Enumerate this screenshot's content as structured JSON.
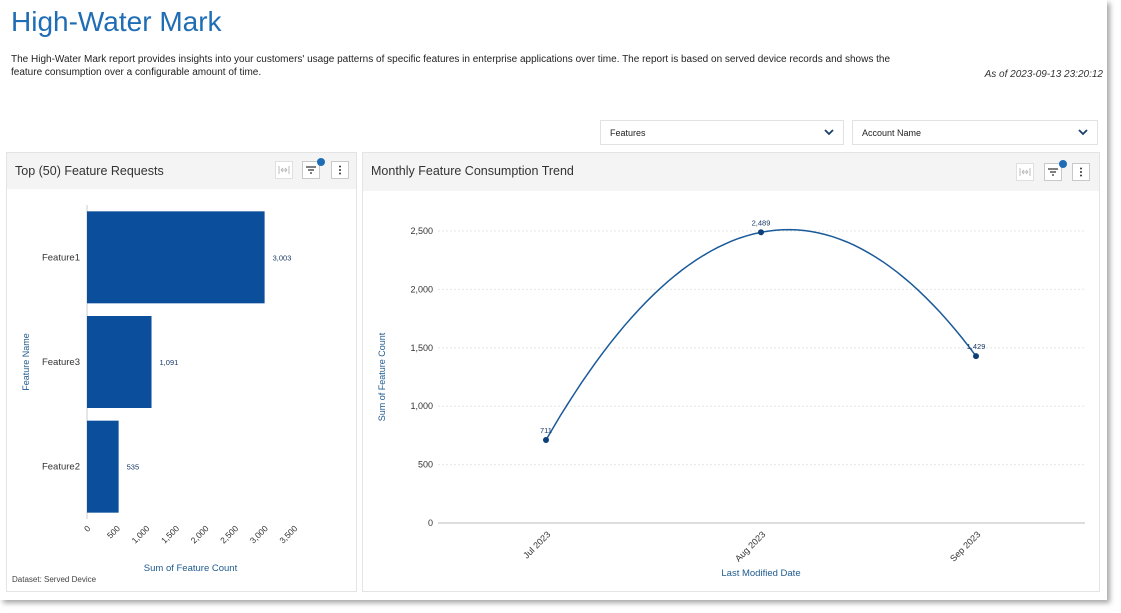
{
  "page": {
    "title": "High-Water Mark",
    "description": "The High-Water Mark report provides insights into your customers' usage patterns of specific features in enterprise applications over time. The report is based on served device records and shows the feature consumption over a configurable amount of time.",
    "as_of": "As of 2023-09-13 23:20:12"
  },
  "filters": {
    "features_label": "Features",
    "account_label": "Account Name"
  },
  "colors": {
    "accent": "#1f6db5",
    "bar": "#0b4f9c",
    "line": "#1a5a9a"
  },
  "icons": {
    "fit": "fit-width-icon",
    "filter": "filter-icon",
    "more": "more-vertical-icon",
    "chevron": "chevron-down-icon"
  },
  "left_panel": {
    "title": "Top (50) Feature Requests",
    "dataset": "Dataset: Served Device"
  },
  "right_panel": {
    "title": "Monthly Feature Consumption Trend"
  },
  "chart_data": [
    {
      "type": "bar",
      "orientation": "horizontal",
      "categories": [
        "Feature1",
        "Feature3",
        "Feature2"
      ],
      "values": [
        3003,
        1091,
        535
      ],
      "labels": [
        "3,003",
        "1,091",
        "535"
      ],
      "xlabel": "Sum of Feature Count",
      "ylabel": "Feature Name",
      "xlim": [
        0,
        3500
      ],
      "xticks": [
        0,
        500,
        1000,
        1500,
        2000,
        2500,
        3000,
        3500
      ],
      "xtick_labels": [
        "0",
        "500",
        "1,000",
        "1,500",
        "2,000",
        "2,500",
        "3,000",
        "3,500"
      ]
    },
    {
      "type": "line",
      "categories": [
        "Jul 2023",
        "Aug 2023",
        "Sep 2023"
      ],
      "values": [
        711,
        2489,
        1429
      ],
      "labels": [
        "711",
        "2,489",
        "1,429"
      ],
      "xlabel": "Last Modified Date",
      "ylabel": "Sum of Feature Count",
      "ylim": [
        0,
        2500
      ],
      "yticks": [
        0,
        500,
        1000,
        1500,
        2000,
        2500
      ],
      "ytick_labels": [
        "0",
        "500",
        "1,000",
        "1,500",
        "2,000",
        "2,500"
      ],
      "grid": true,
      "smooth": true
    }
  ]
}
